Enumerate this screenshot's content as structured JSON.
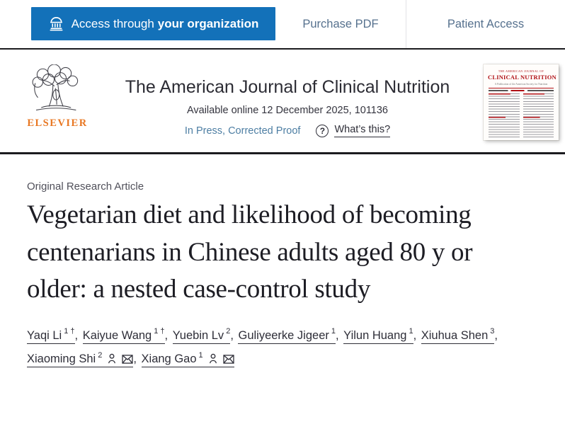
{
  "topbar": {
    "access_prefix": "Access through",
    "access_bold": "your organization",
    "purchase_pdf": "Purchase PDF",
    "patient_access": "Patient Access"
  },
  "header": {
    "publisher": "ELSEVIER",
    "journal_title": "The American Journal of Clinical Nutrition",
    "availability": "Available online 12 December 2025, 101136",
    "in_press": "In Press, Corrected Proof",
    "question_mark": "?",
    "whats_this": "What’s this?",
    "cover": {
      "masthead": "THE AMERICAN JOURNAL OF",
      "title": "CLINICAL NUTRITION",
      "subtitle": "A Publication of the American Society for Nutrition"
    }
  },
  "article": {
    "category": "Original Research Article",
    "title": "Vegetarian diet and likelihood of becoming centenarians in Chinese adults aged 80 y or older: a nested case-control study",
    "authors": [
      {
        "name": "Yaqi Li",
        "sup": "1 †",
        "person": false,
        "mail": false
      },
      {
        "name": "Kaiyue Wang",
        "sup": "1 †",
        "person": false,
        "mail": false
      },
      {
        "name": "Yuebin Lv",
        "sup": "2",
        "person": false,
        "mail": false
      },
      {
        "name": "Guliyeerke Jigeer",
        "sup": "1",
        "person": false,
        "mail": false
      },
      {
        "name": "Yilun Huang",
        "sup": "1",
        "person": false,
        "mail": false
      },
      {
        "name": "Xiuhua Shen",
        "sup": "3",
        "person": false,
        "mail": false
      },
      {
        "name": "Xiaoming Shi",
        "sup": "2",
        "person": true,
        "mail": true
      },
      {
        "name": "Xiang Gao",
        "sup": "1",
        "person": true,
        "mail": true
      }
    ]
  },
  "colors": {
    "accent_blue": "#1371b9",
    "bar_link": "#56718e",
    "in_press_blue": "#4d7ea3",
    "elsevier_orange": "#e87722",
    "cover_red": "#b01116",
    "text_dark": "#2e2e38"
  }
}
